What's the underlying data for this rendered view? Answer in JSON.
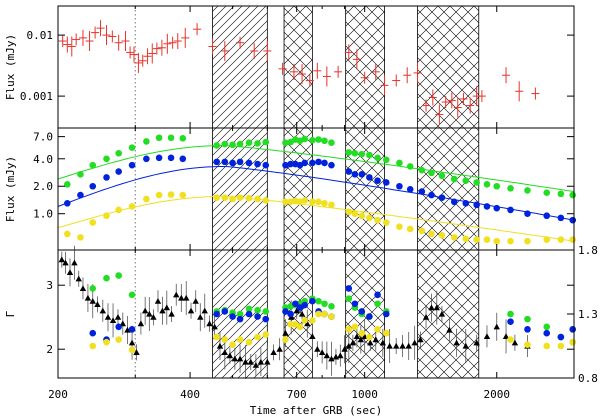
{
  "chart_data": {
    "type": "scatter",
    "title": "",
    "x_axis": {
      "label": "Time after GRB (sec)",
      "scale": "log",
      "range": [
        200,
        3000
      ],
      "ticks": [
        {
          "value": 200,
          "label": "200"
        },
        {
          "value": 400,
          "label": "400"
        },
        {
          "value": 700,
          "label": "700"
        },
        {
          "value": 1000,
          "label": "1000"
        },
        {
          "value": 2000,
          "label": "2000"
        }
      ]
    },
    "reference_line_x": 300,
    "shaded_regions": [
      {
        "x0": 450,
        "x1": 600,
        "pattern": "hatch"
      },
      {
        "x0": 655,
        "x1": 760,
        "pattern": "crosshatch"
      },
      {
        "x0": 905,
        "x1": 1110,
        "pattern": "crosshatch"
      },
      {
        "x0": 1320,
        "x1": 1820,
        "pattern": "crosshatch"
      }
    ],
    "panels": [
      {
        "id": "top",
        "ylabel": "Flux (mJy)",
        "y_scale": "log",
        "ylim": [
          0.0003,
          0.03
        ],
        "y_ticks": [
          {
            "value": 0.01,
            "label": "0.01"
          },
          {
            "value": 0.001,
            "label": "0.001"
          }
        ],
        "series": [
          {
            "name": "X-ray flux",
            "color": "#e8332c",
            "marker": "errorbar",
            "x": [
              205,
              210,
              215,
              220,
              228,
              236,
              243,
              250,
              258,
              266,
              275,
              285,
              292,
              298,
              305,
              312,
              320,
              328,
              336,
              345,
              355,
              365,
              375,
              390,
              415,
              450,
              480,
              520,
              560,
              600,
              650,
              690,
              720,
              750,
              780,
              820,
              870,
              920,
              960,
              1000,
              1060,
              1110,
              1180,
              1250,
              1320,
              1380,
              1430,
              1480,
              1530,
              1580,
              1630,
              1680,
              1740,
              1800,
              1850,
              2100,
              2250,
              2450
            ],
            "y": [
              0.008,
              0.007,
              0.0065,
              0.0085,
              0.009,
              0.008,
              0.011,
              0.013,
              0.01,
              0.0095,
              0.0075,
              0.008,
              0.0052,
              0.0048,
              0.0035,
              0.0038,
              0.0045,
              0.005,
              0.006,
              0.0062,
              0.0072,
              0.0075,
              0.008,
              0.009,
              0.0125,
              0.0065,
              0.0055,
              0.0075,
              0.0055,
              0.0055,
              0.0028,
              0.0025,
              0.0023,
              0.0018,
              0.0026,
              0.0021,
              0.0025,
              0.0052,
              0.004,
              0.002,
              0.0025,
              0.0015,
              0.0018,
              0.0022,
              0.0024,
              0.0007,
              0.00095,
              0.0005,
              0.0008,
              0.00085,
              0.00065,
              0.0009,
              0.0007,
              0.001,
              0.001,
              0.0022,
              0.0012,
              0.0011
            ]
          }
        ]
      },
      {
        "id": "middle",
        "ylabel": "Flux (mJy)",
        "y_scale": "log",
        "ylim": [
          0.4,
          8.7
        ],
        "y_ticks": [
          {
            "value": 7.0,
            "label": "7.0"
          },
          {
            "value": 4.0,
            "label": "4.0"
          },
          {
            "value": 2.0,
            "label": "2.0"
          },
          {
            "value": 1.0,
            "label": "1.0"
          }
        ],
        "series": [
          {
            "name": "green band",
            "color": "#22dd22",
            "marker": "dot",
            "x": [
              210,
              225,
              240,
              258,
              275,
              295,
              318,
              340,
              362,
              385,
              460,
              480,
              500,
              520,
              545,
              570,
              595,
              660,
              678,
              695,
              712,
              730,
              760,
              785,
              810,
              840,
              920,
              950,
              985,
              1025,
              1070,
              1120,
              1200,
              1270,
              1350,
              1420,
              1500,
              1600,
              1700,
              1800,
              1900,
              2000,
              2150,
              2350,
              2600,
              2800,
              2980
            ],
            "y": [
              2.1,
              2.7,
              3.4,
              4.0,
              4.6,
              5.3,
              6.2,
              6.8,
              6.8,
              6.7,
              5.6,
              5.8,
              5.7,
              5.8,
              6.0,
              5.9,
              6.1,
              6.0,
              6.1,
              6.5,
              6.3,
              6.6,
              6.4,
              6.5,
              6.3,
              6.0,
              4.7,
              4.6,
              4.5,
              4.4,
              4.1,
              3.9,
              3.6,
              3.3,
              3.0,
              2.8,
              2.6,
              2.4,
              2.3,
              2.2,
              2.1,
              2.0,
              1.9,
              1.8,
              1.7,
              1.65,
              1.6
            ]
          },
          {
            "name": "blue band",
            "color": "#0022dd",
            "marker": "dot",
            "x": [
              210,
              225,
              240,
              258,
              275,
              295,
              318,
              340,
              362,
              385,
              460,
              480,
              500,
              520,
              545,
              570,
              595,
              660,
              678,
              695,
              712,
              730,
              760,
              785,
              810,
              840,
              920,
              950,
              985,
              1025,
              1070,
              1120,
              1200,
              1270,
              1350,
              1420,
              1500,
              1600,
              1700,
              1800,
              1900,
              2000,
              2150,
              2350,
              2600,
              2800,
              2980
            ],
            "y": [
              1.3,
              1.6,
              2.0,
              2.5,
              2.9,
              3.4,
              4.0,
              4.1,
              4.1,
              4.0,
              3.7,
              3.7,
              3.6,
              3.7,
              3.6,
              3.5,
              3.4,
              3.4,
              3.5,
              3.5,
              3.4,
              3.6,
              3.6,
              3.7,
              3.6,
              3.4,
              2.9,
              2.7,
              2.7,
              2.5,
              2.3,
              2.2,
              2.0,
              1.85,
              1.75,
              1.6,
              1.5,
              1.35,
              1.3,
              1.25,
              1.2,
              1.15,
              1.1,
              1.0,
              0.95,
              0.9,
              0.85
            ]
          },
          {
            "name": "yellow band",
            "color": "#f0e020",
            "marker": "dot",
            "x": [
              210,
              225,
              240,
              258,
              275,
              295,
              318,
              340,
              362,
              385,
              460,
              480,
              500,
              520,
              545,
              570,
              595,
              660,
              678,
              695,
              712,
              730,
              760,
              785,
              810,
              840,
              920,
              950,
              985,
              1025,
              1070,
              1120,
              1200,
              1270,
              1350,
              1420,
              1500,
              1600,
              1700,
              1800,
              1900,
              2000,
              2150,
              2350,
              2600,
              2800,
              2980
            ],
            "y": [
              0.6,
              0.55,
              0.8,
              0.95,
              1.1,
              1.2,
              1.45,
              1.6,
              1.62,
              1.6,
              1.5,
              1.5,
              1.45,
              1.5,
              1.48,
              1.45,
              1.4,
              1.35,
              1.35,
              1.38,
              1.35,
              1.4,
              1.35,
              1.35,
              1.3,
              1.25,
              1.05,
              1.0,
              0.95,
              0.9,
              0.85,
              0.8,
              0.72,
              0.68,
              0.65,
              0.6,
              0.58,
              0.55,
              0.53,
              0.52,
              0.52,
              0.5,
              0.5,
              0.5,
              0.52,
              0.52,
              0.52
            ]
          }
        ],
        "model_curves": [
          {
            "color": "#22dd22",
            "peak": 5.6,
            "start": 2.4,
            "end": 1.75
          },
          {
            "color": "#0022dd",
            "peak": 3.3,
            "start": 1.2,
            "end": 0.85
          },
          {
            "color": "#f0e020",
            "peak": 1.55,
            "start": 0.7,
            "end": 0.5
          }
        ]
      },
      {
        "id": "bottom",
        "ylabel": "Γ",
        "y_scale": "linear",
        "ylim": [
          1.55,
          3.55
        ],
        "y_ticks": [
          {
            "value": 3,
            "label": "3"
          },
          {
            "value": 2,
            "label": "2"
          }
        ],
        "y2_axis": {
          "range": [
            0.8,
            1.8
          ],
          "ticks": [
            {
              "value": 1.8,
              "label": "1.8"
            },
            {
              "value": 1.3,
              "label": "1.3"
            },
            {
              "value": 0.8,
              "label": "0.8"
            }
          ]
        },
        "series": [
          {
            "name": "X-ray photon index",
            "color": "#000000",
            "marker": "triangle-errorbar",
            "x": [
              204,
              208,
              213,
              218,
              223,
              228,
              234,
              240,
              246,
              253,
              260,
              267,
              274,
              281,
              288,
              295,
              302,
              309,
              316,
              323,
              330,
              338,
              346,
              354,
              363,
              372,
              382,
              392,
              402,
              412,
              422,
              432,
              443,
              455,
              468,
              480,
              493,
              506,
              520,
              535,
              550,
              565,
              580,
              600,
              620,
              640,
              660,
              680,
              700,
              720,
              740,
              760,
              780,
              800,
              820,
              840,
              860,
              880,
              900,
              920,
              940,
              960,
              980,
              1000,
              1030,
              1060,
              1100,
              1140,
              1180,
              1220,
              1260,
              1300,
              1340,
              1380,
              1420,
              1460,
              1500,
              1560,
              1620,
              1700,
              1800,
              1900,
              2000,
              2100,
              2200,
              2350
            ],
            "y": [
              3.4,
              3.35,
              3.2,
              3.35,
              3.1,
              2.95,
              2.8,
              2.75,
              2.7,
              2.6,
              2.5,
              2.45,
              2.5,
              2.4,
              2.3,
              2.1,
              1.95,
              2.4,
              2.6,
              2.55,
              2.5,
              2.75,
              2.6,
              2.65,
              2.55,
              2.85,
              2.8,
              2.8,
              2.6,
              2.75,
              2.5,
              2.6,
              2.4,
              2.35,
              2.05,
              1.95,
              1.9,
              1.85,
              1.85,
              1.8,
              1.8,
              1.75,
              1.8,
              1.8,
              1.95,
              2.0,
              2.25,
              2.5,
              2.6,
              2.55,
              2.4,
              2.2,
              2.0,
              1.95,
              1.9,
              1.85,
              1.88,
              1.9,
              2.0,
              2.05,
              2.1,
              2.2,
              2.15,
              2.2,
              2.1,
              2.15,
              2.1,
              2.05,
              2.05,
              2.05,
              2.05,
              2.1,
              2.15,
              2.5,
              2.65,
              2.65,
              2.55,
              2.3,
              2.1,
              2.05,
              2.1,
              2.2,
              2.35,
              2.2,
              2.1,
              2.05
            ]
          },
          {
            "name": "green index",
            "color": "#22dd22",
            "marker": "dot",
            "axis": "right",
            "x": [
              240,
              258,
              275,
              295,
              460,
              480,
              500,
              520,
              545,
              570,
              595,
              660,
              678,
              695,
              712,
              730,
              760,
              785,
              810,
              840,
              920,
              950,
              985,
              1025,
              1070,
              1120,
              2150,
              2350,
              2600,
              2800,
              2980
            ],
            "y": [
              1.5,
              1.58,
              1.6,
              1.45,
              1.32,
              1.33,
              1.31,
              1.3,
              1.34,
              1.33,
              1.32,
              1.35,
              1.36,
              1.37,
              1.38,
              1.4,
              1.42,
              1.4,
              1.38,
              1.36,
              1.42,
              1.35,
              1.3,
              1.28,
              1.38,
              1.32,
              1.3,
              1.26,
              1.2,
              1.12,
              1.08
            ]
          },
          {
            "name": "blue index",
            "color": "#0022dd",
            "marker": "dot",
            "axis": "right",
            "x": [
              240,
              258,
              275,
              295,
              460,
              480,
              500,
              520,
              545,
              570,
              595,
              660,
              678,
              695,
              712,
              730,
              760,
              785,
              810,
              840,
              920,
              950,
              985,
              1025,
              1070,
              1120,
              2150,
              2350,
              2600,
              2800,
              2980
            ],
            "y": [
              1.15,
              1.1,
              1.2,
              1.18,
              1.3,
              1.32,
              1.28,
              1.26,
              1.3,
              1.28,
              1.26,
              1.32,
              1.3,
              1.38,
              1.35,
              1.37,
              1.4,
              1.32,
              1.3,
              1.28,
              1.5,
              1.38,
              1.32,
              1.28,
              1.45,
              1.3,
              1.24,
              1.18,
              1.15,
              1.12,
              1.18
            ]
          },
          {
            "name": "yellow index",
            "color": "#f0e020",
            "marker": "dot",
            "axis": "right",
            "x": [
              240,
              258,
              275,
              295,
              460,
              480,
              500,
              520,
              545,
              570,
              595,
              660,
              678,
              695,
              712,
              730,
              760,
              785,
              810,
              840,
              920,
              950,
              985,
              1025,
              1070,
              1120,
              2150,
              2350,
              2600,
              2800,
              2980
            ],
            "y": [
              1.05,
              1.08,
              1.1,
              1.02,
              1.12,
              1.1,
              1.06,
              1.1,
              1.08,
              1.12,
              1.14,
              1.1,
              1.22,
              1.22,
              1.2,
              1.25,
              1.25,
              1.3,
              1.3,
              1.28,
              1.18,
              1.2,
              1.15,
              1.12,
              1.18,
              1.15,
              1.1,
              1.06,
              1.05,
              1.05,
              1.08
            ]
          }
        ]
      }
    ]
  }
}
